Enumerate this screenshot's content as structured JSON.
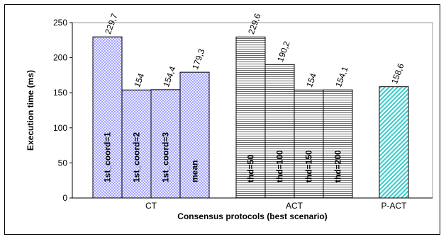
{
  "chart_data": {
    "type": "bar",
    "title": "",
    "xlabel": "Consensus protocols (best scenario)",
    "ylabel": "Execution time (ms)",
    "ylim": [
      0,
      250
    ],
    "yticks": [
      "0",
      "50",
      "100",
      "150",
      "200",
      "250"
    ],
    "grid": false,
    "legend": "none",
    "groups": [
      {
        "name": "CT",
        "pattern": "crosshatch",
        "fill_color": "#9999ff",
        "bars": [
          {
            "label": "1st_coord=1",
            "value": 229.7,
            "value_label": "229,7"
          },
          {
            "label": "1st_coord=2",
            "value": 154,
            "value_label": "154"
          },
          {
            "label": "1st_coord=3",
            "value": 154.4,
            "value_label": "154,4"
          },
          {
            "label": "mean",
            "value": 179.3,
            "value_label": "179,3"
          }
        ]
      },
      {
        "name": "ACT",
        "pattern": "horizontal-lines",
        "fill_color": "#000000",
        "bars": [
          {
            "label": "thd=50",
            "value": 229.6,
            "value_label": "229,6"
          },
          {
            "label": "thd=100",
            "value": 190.2,
            "value_label": "190,2"
          },
          {
            "label": "thd=150",
            "value": 154,
            "value_label": "154"
          },
          {
            "label": "thd=200",
            "value": 154.1,
            "value_label": "154,1"
          }
        ]
      },
      {
        "name": "P-ACT",
        "pattern": "diagonal-stripes",
        "fill_color": "#33cccc",
        "bars": [
          {
            "label": "",
            "value": 158.6,
            "value_label": "158,6"
          }
        ]
      }
    ]
  }
}
